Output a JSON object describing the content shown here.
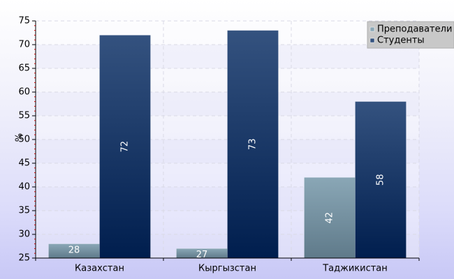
{
  "chart_data": {
    "type": "bar",
    "title": "",
    "xlabel": "",
    "ylabel": "%",
    "ylim": [
      25,
      75
    ],
    "yticks": [
      25,
      30,
      35,
      40,
      45,
      50,
      55,
      60,
      65,
      70,
      75
    ],
    "categories": [
      "Казахстан",
      "Кыргызстан",
      "Таджикистан"
    ],
    "series": [
      {
        "name": "Преподаватели",
        "values": [
          28,
          27,
          42
        ],
        "color_top": "#8aa7b6",
        "color_bottom": "#5f7a8a"
      },
      {
        "name": "Студенты",
        "values": [
          72,
          73,
          58
        ],
        "color_top": "#34527f",
        "color_bottom": "#001e4e"
      }
    ],
    "grid": true,
    "legend_position": "top-right",
    "value_labels": true
  }
}
